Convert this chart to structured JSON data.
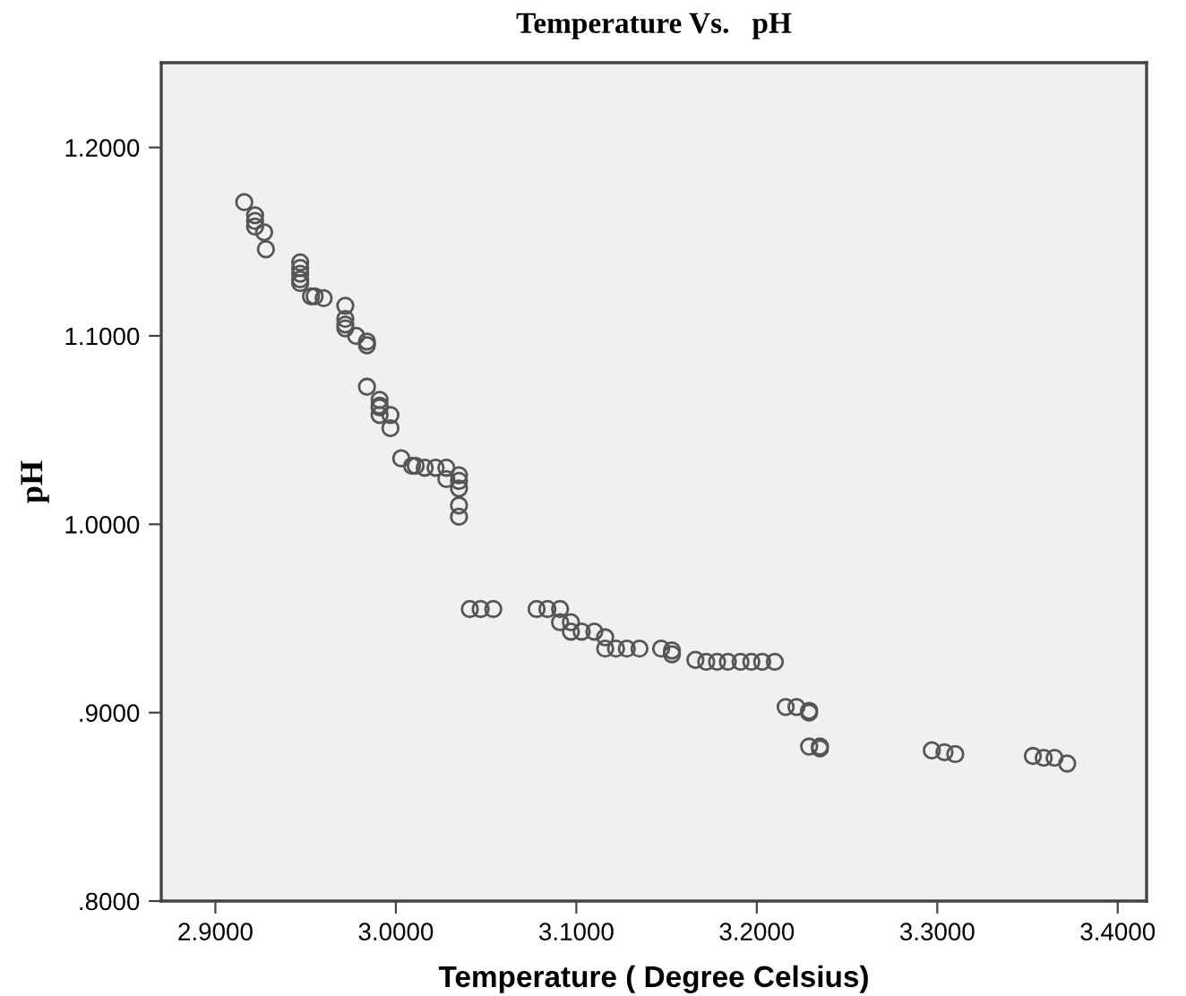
{
  "chart_data": {
    "type": "scatter",
    "title": "Temperature Vs.   pH",
    "xlabel": "Temperature ( Degree Celsius)",
    "ylabel": "pH",
    "xlim": [
      2.87,
      3.416
    ],
    "ylim": [
      0.8,
      1.245
    ],
    "xticks": [
      {
        "value": 2.9,
        "label": "2.9000"
      },
      {
        "value": 3.0,
        "label": "3.0000"
      },
      {
        "value": 3.1,
        "label": "3.1000"
      },
      {
        "value": 3.2,
        "label": "3.2000"
      },
      {
        "value": 3.3,
        "label": "3.3000"
      },
      {
        "value": 3.4,
        "label": "3.4000"
      }
    ],
    "yticks": [
      {
        "value": 0.8,
        "label": ".8000"
      },
      {
        "value": 0.9,
        "label": ".9000"
      },
      {
        "value": 1.0,
        "label": "1.0000"
      },
      {
        "value": 1.1,
        "label": "1.1000"
      },
      {
        "value": 1.2,
        "label": "1.2000"
      }
    ],
    "grid": false,
    "marker": "circle",
    "series": [
      {
        "color": "#555555",
        "x": [
          2.916,
          2.922,
          2.922,
          2.922,
          2.927,
          2.928,
          2.947,
          2.947,
          2.947,
          2.947,
          2.947,
          2.953,
          2.955,
          2.96,
          2.972,
          2.972,
          2.972,
          2.972,
          2.978,
          2.984,
          2.984,
          2.984,
          2.991,
          2.991,
          2.991,
          2.991,
          2.997,
          2.997,
          3.003,
          3.009,
          3.011,
          3.016,
          3.022,
          3.028,
          3.028,
          3.035,
          3.035,
          3.035,
          3.035,
          3.035,
          3.041,
          3.047,
          3.054,
          3.078,
          3.084,
          3.091,
          3.091,
          3.097,
          3.097,
          3.103,
          3.11,
          3.116,
          3.116,
          3.122,
          3.128,
          3.135,
          3.147,
          3.153,
          3.153,
          3.166,
          3.172,
          3.178,
          3.184,
          3.191,
          3.197,
          3.203,
          3.21,
          3.216,
          3.222,
          3.229,
          3.229,
          3.229,
          3.235,
          3.235,
          3.297,
          3.304,
          3.31,
          3.353,
          3.359,
          3.365,
          3.372
        ],
        "values": [
          1.171,
          1.164,
          1.161,
          1.158,
          1.155,
          1.146,
          1.139,
          1.136,
          1.133,
          1.13,
          1.128,
          1.121,
          1.121,
          1.12,
          1.116,
          1.109,
          1.106,
          1.104,
          1.1,
          1.097,
          1.095,
          1.073,
          1.066,
          1.063,
          1.062,
          1.058,
          1.058,
          1.051,
          1.035,
          1.031,
          1.031,
          1.03,
          1.03,
          1.03,
          1.024,
          1.026,
          1.023,
          1.019,
          1.01,
          1.004,
          0.955,
          0.955,
          0.955,
          0.955,
          0.955,
          0.955,
          0.948,
          0.948,
          0.943,
          0.943,
          0.943,
          0.94,
          0.934,
          0.934,
          0.934,
          0.934,
          0.934,
          0.933,
          0.931,
          0.928,
          0.927,
          0.927,
          0.927,
          0.927,
          0.927,
          0.927,
          0.927,
          0.903,
          0.903,
          0.901,
          0.9,
          0.882,
          0.882,
          0.881,
          0.88,
          0.879,
          0.878,
          0.877,
          0.876,
          0.876,
          0.873
        ]
      }
    ]
  }
}
